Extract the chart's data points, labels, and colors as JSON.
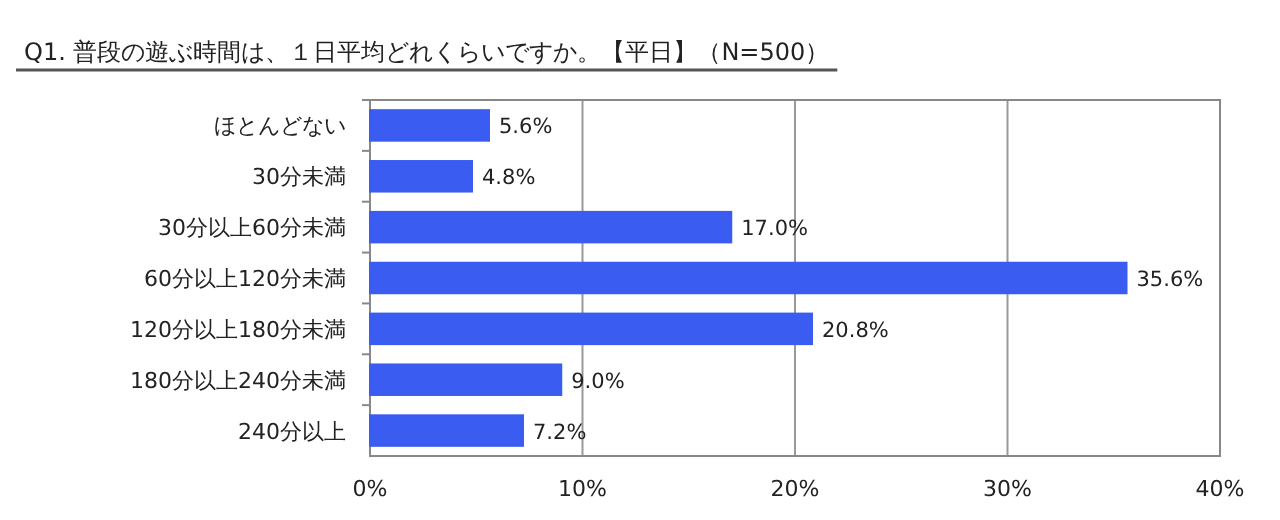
{
  "chart_data": {
    "type": "bar",
    "orientation": "horizontal",
    "title": "Q1. 普段の遊ぶ時間は、１日平均どれくらいですか。【平日】（N=500）",
    "categories": [
      "ほとんどない",
      "30分未満",
      "30分以上60分未満",
      "60分以上120分未満",
      "120分以上180分未満",
      "180分以上240分未満",
      "240分以上"
    ],
    "values": [
      5.6,
      4.8,
      17.0,
      35.6,
      20.8,
      9.0,
      7.2
    ],
    "value_labels": [
      "5.6%",
      "4.8%",
      "17.0%",
      "35.6%",
      "20.8%",
      "9.0%",
      "7.2%"
    ],
    "color": "#3a5cf0",
    "xlim": [
      0,
      40
    ],
    "xticks": [
      {
        "value": 0,
        "label": "0%"
      },
      {
        "value": 10,
        "label": "10%"
      },
      {
        "value": 20,
        "label": "20%"
      },
      {
        "value": 30,
        "label": "30%"
      },
      {
        "value": 40,
        "label": "40%"
      }
    ],
    "grid": "x"
  }
}
